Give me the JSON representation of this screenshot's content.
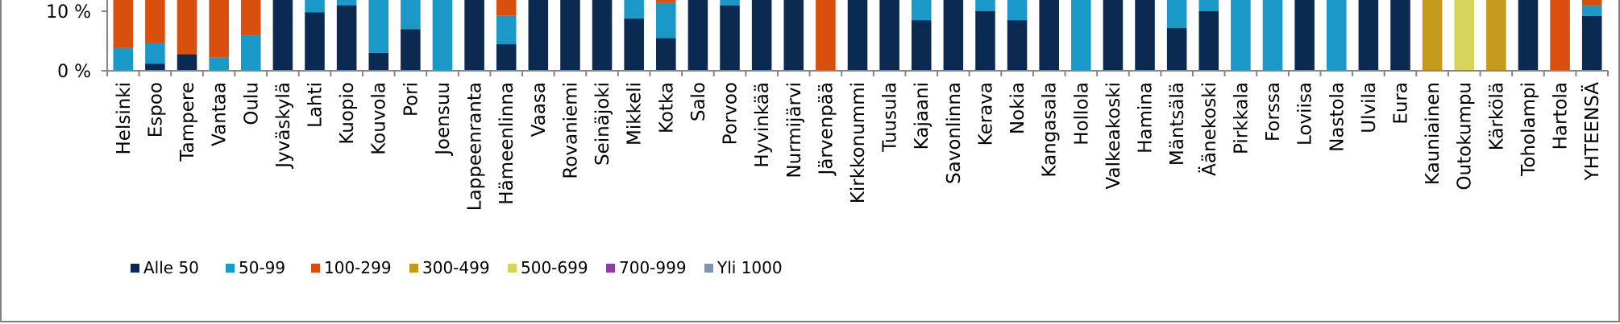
{
  "chart_data": {
    "type": "bar",
    "stacked": true,
    "ylim": [
      0,
      100
    ],
    "y_unit": "%",
    "yticks": [
      0,
      10
    ],
    "ytick_labels": [
      "0 %",
      "10 %"
    ],
    "grid": false,
    "legend_position": "bottom",
    "categories": [
      "Helsinki",
      "Espoo",
      "Tampere",
      "Vantaa",
      "Oulu",
      "Jyväskylä",
      "Lahti",
      "Kuopio",
      "Kouvola",
      "Pori",
      "Joensuu",
      "Lappeenranta",
      "Hämeenlinna",
      "Vaasa",
      "Rovaniemi",
      "Seinäjoki",
      "Mikkeli",
      "Kotka",
      "Salo",
      "Porvoo",
      "Hyvinkää",
      "Nurmijärvi",
      "Järvenpää",
      "Kirkkonummi",
      "Tuusula",
      "Kajaani",
      "Savonlinna",
      "Kerava",
      "Nokia",
      "Kangasala",
      "Hollola",
      "Valkeakoski",
      "Hamina",
      "Mäntsälä",
      "Äänekoski",
      "Pirkkala",
      "Forssa",
      "Loviisa",
      "Nastola",
      "Ulvila",
      "Eura",
      "Kauniainen",
      "Outokumpu",
      "Kärkölä",
      "Toholampi",
      "Hartola",
      "YHTEENSÄ"
    ],
    "series": [
      {
        "name": "Alle 50",
        "color": "#0b2a52",
        "values": [
          0,
          1.2,
          2.8,
          0,
          0,
          100,
          9.8,
          11,
          3,
          7,
          0,
          100,
          4.5,
          100,
          100,
          100,
          8.8,
          5.5,
          100,
          11,
          100,
          100,
          0,
          100,
          100,
          8.5,
          100,
          10,
          8.5,
          100,
          0,
          100,
          100,
          7.2,
          10,
          0,
          0,
          100,
          0,
          100,
          100,
          0,
          0,
          0,
          100,
          0,
          9.2
        ]
      },
      {
        "name": "50-99",
        "color": "#1a98c8",
        "values": [
          3.8,
          3.4,
          0,
          2.2,
          6,
          0,
          90.2,
          1.5,
          97,
          93,
          100,
          0,
          4.8,
          0,
          0,
          0,
          91.2,
          6,
          0,
          1.5,
          0,
          0,
          0,
          0,
          0,
          91.5,
          0,
          2,
          91.5,
          0,
          100,
          0,
          0,
          92.8,
          2,
          100,
          100,
          0,
          100,
          0,
          0,
          0,
          0,
          0,
          0,
          0,
          1.8
        ]
      },
      {
        "name": "100-299",
        "color": "#d94f0e",
        "values": [
          96.2,
          95.4,
          97.2,
          97.8,
          94,
          0,
          0,
          0,
          0,
          0,
          0,
          0,
          90.7,
          0,
          0,
          0,
          0,
          88.5,
          0,
          0,
          0,
          0,
          100,
          0,
          0,
          0,
          0,
          0,
          0,
          0,
          0,
          0,
          0,
          0,
          0,
          0,
          0,
          0,
          0,
          0,
          0,
          0,
          0,
          0,
          0,
          100,
          89
        ]
      },
      {
        "name": "300-499",
        "color": "#c59a1b",
        "values": [
          0,
          0,
          0,
          0,
          0,
          0,
          0,
          0,
          0,
          0,
          0,
          0,
          0,
          0,
          0,
          0,
          0,
          0,
          0,
          0,
          0,
          0,
          0,
          0,
          0,
          0,
          0,
          0,
          0,
          0,
          0,
          0,
          0,
          0,
          0,
          0,
          0,
          0,
          0,
          0,
          0,
          100,
          0,
          100,
          0,
          0,
          0
        ]
      },
      {
        "name": "500-699",
        "color": "#d6d45a",
        "values": [
          0,
          0,
          0,
          0,
          0,
          0,
          0,
          0,
          0,
          0,
          0,
          0,
          0,
          0,
          0,
          0,
          0,
          0,
          0,
          0,
          0,
          0,
          0,
          0,
          0,
          0,
          0,
          0,
          0,
          0,
          0,
          0,
          0,
          0,
          0,
          0,
          0,
          0,
          0,
          0,
          0,
          0,
          100,
          0,
          0,
          0,
          0
        ]
      },
      {
        "name": "700-999",
        "color": "#8b3fa0",
        "values": [
          0,
          0,
          0,
          0,
          0,
          0,
          0,
          0,
          0,
          0,
          0,
          0,
          0,
          0,
          0,
          0,
          0,
          0,
          0,
          0,
          0,
          0,
          0,
          0,
          0,
          0,
          0,
          0,
          0,
          0,
          0,
          0,
          0,
          0,
          0,
          0,
          0,
          0,
          0,
          0,
          0,
          0,
          0,
          0,
          0,
          0,
          0
        ]
      },
      {
        "name": "Yli 1000",
        "color": "#8494a8",
        "values": [
          0,
          0,
          0,
          0,
          0,
          0,
          0,
          0,
          0,
          0,
          0,
          0,
          0,
          0,
          0,
          0,
          0,
          0,
          0,
          0,
          0,
          0,
          0,
          0,
          0,
          0,
          0,
          0,
          0,
          0,
          0,
          0,
          0,
          0,
          0,
          0,
          0,
          0,
          0,
          0,
          0,
          0,
          0,
          0,
          0,
          0,
          0
        ]
      }
    ]
  }
}
